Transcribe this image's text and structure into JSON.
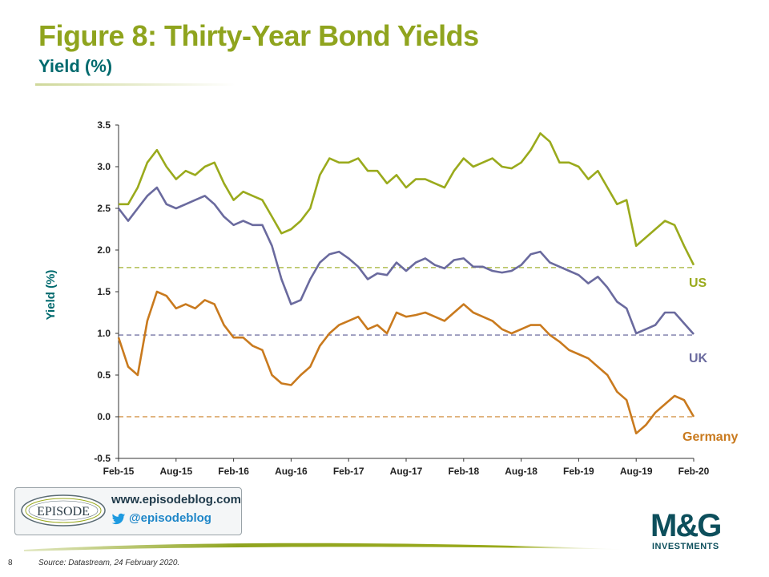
{
  "slide": {
    "title": "Figure 8: Thirty-Year Bond Yields",
    "subtitle": "Yield (%)",
    "page_number": "8",
    "source": "Source: Datastream, 24 February 2020."
  },
  "branding": {
    "episode_logo_text": "EPISODE",
    "website": "www.episodeblog.com",
    "twitter": "@episodeblog",
    "mg_logo": "M&G",
    "mg_sub": "INVESTMENTS"
  },
  "colors": {
    "title": "#8fa41e",
    "subtitle": "#006a6e",
    "us": "#9aaa1c",
    "uk": "#6a6a9e",
    "germany": "#c97a1e"
  },
  "chart_data": {
    "type": "line",
    "ylabel": "Yield (%)",
    "xlabel": "",
    "ylim": [
      -0.5,
      3.5
    ],
    "yticks": [
      -0.5,
      0.0,
      0.5,
      1.0,
      1.5,
      2.0,
      2.5,
      3.0,
      3.5
    ],
    "xlim": [
      "2015-02",
      "2020-02"
    ],
    "xticks": [
      "Feb-15",
      "Aug-15",
      "Feb-16",
      "Aug-16",
      "Feb-17",
      "Aug-17",
      "Feb-18",
      "Aug-18",
      "Feb-19",
      "Aug-19",
      "Feb-20"
    ],
    "grid": false,
    "series": [
      {
        "name": "US",
        "color": "#9aaa1c",
        "reference_level": 1.79,
        "points": [
          [
            "2015-02",
            2.55
          ],
          [
            "2015-03",
            2.55
          ],
          [
            "2015-04",
            2.75
          ],
          [
            "2015-05",
            3.05
          ],
          [
            "2015-06",
            3.2
          ],
          [
            "2015-07",
            3.0
          ],
          [
            "2015-08",
            2.85
          ],
          [
            "2015-09",
            2.95
          ],
          [
            "2015-10",
            2.9
          ],
          [
            "2015-11",
            3.0
          ],
          [
            "2015-12",
            3.05
          ],
          [
            "2016-01",
            2.8
          ],
          [
            "2016-02",
            2.6
          ],
          [
            "2016-03",
            2.7
          ],
          [
            "2016-04",
            2.65
          ],
          [
            "2016-05",
            2.6
          ],
          [
            "2016-06",
            2.4
          ],
          [
            "2016-07",
            2.2
          ],
          [
            "2016-08",
            2.25
          ],
          [
            "2016-09",
            2.35
          ],
          [
            "2016-10",
            2.5
          ],
          [
            "2016-11",
            2.9
          ],
          [
            "2016-12",
            3.1
          ],
          [
            "2017-01",
            3.05
          ],
          [
            "2017-02",
            3.05
          ],
          [
            "2017-03",
            3.1
          ],
          [
            "2017-04",
            2.95
          ],
          [
            "2017-05",
            2.95
          ],
          [
            "2017-06",
            2.8
          ],
          [
            "2017-07",
            2.9
          ],
          [
            "2017-08",
            2.75
          ],
          [
            "2017-09",
            2.85
          ],
          [
            "2017-10",
            2.85
          ],
          [
            "2017-11",
            2.8
          ],
          [
            "2017-12",
            2.75
          ],
          [
            "2018-01",
            2.95
          ],
          [
            "2018-02",
            3.1
          ],
          [
            "2018-03",
            3.0
          ],
          [
            "2018-04",
            3.05
          ],
          [
            "2018-05",
            3.1
          ],
          [
            "2018-06",
            3.0
          ],
          [
            "2018-07",
            2.98
          ],
          [
            "2018-08",
            3.05
          ],
          [
            "2018-09",
            3.2
          ],
          [
            "2018-10",
            3.4
          ],
          [
            "2018-11",
            3.3
          ],
          [
            "2018-12",
            3.05
          ],
          [
            "2019-01",
            3.05
          ],
          [
            "2019-02",
            3.0
          ],
          [
            "2019-03",
            2.85
          ],
          [
            "2019-04",
            2.95
          ],
          [
            "2019-05",
            2.75
          ],
          [
            "2019-06",
            2.55
          ],
          [
            "2019-07",
            2.6
          ],
          [
            "2019-08",
            2.05
          ],
          [
            "2019-09",
            2.15
          ],
          [
            "2019-10",
            2.25
          ],
          [
            "2019-11",
            2.35
          ],
          [
            "2019-12",
            2.3
          ],
          [
            "2020-01",
            2.05
          ],
          [
            "2020-02",
            1.82
          ]
        ]
      },
      {
        "name": "UK",
        "color": "#6a6a9e",
        "reference_level": 0.98,
        "points": [
          [
            "2015-02",
            2.5
          ],
          [
            "2015-03",
            2.35
          ],
          [
            "2015-04",
            2.5
          ],
          [
            "2015-05",
            2.65
          ],
          [
            "2015-06",
            2.75
          ],
          [
            "2015-07",
            2.55
          ],
          [
            "2015-08",
            2.5
          ],
          [
            "2015-09",
            2.55
          ],
          [
            "2015-10",
            2.6
          ],
          [
            "2015-11",
            2.65
          ],
          [
            "2015-12",
            2.55
          ],
          [
            "2016-01",
            2.4
          ],
          [
            "2016-02",
            2.3
          ],
          [
            "2016-03",
            2.35
          ],
          [
            "2016-04",
            2.3
          ],
          [
            "2016-05",
            2.3
          ],
          [
            "2016-06",
            2.05
          ],
          [
            "2016-07",
            1.65
          ],
          [
            "2016-08",
            1.35
          ],
          [
            "2016-09",
            1.4
          ],
          [
            "2016-10",
            1.65
          ],
          [
            "2016-11",
            1.85
          ],
          [
            "2016-12",
            1.95
          ],
          [
            "2017-01",
            1.98
          ],
          [
            "2017-02",
            1.9
          ],
          [
            "2017-03",
            1.8
          ],
          [
            "2017-04",
            1.65
          ],
          [
            "2017-05",
            1.72
          ],
          [
            "2017-06",
            1.7
          ],
          [
            "2017-07",
            1.85
          ],
          [
            "2017-08",
            1.75
          ],
          [
            "2017-09",
            1.85
          ],
          [
            "2017-10",
            1.9
          ],
          [
            "2017-11",
            1.82
          ],
          [
            "2017-12",
            1.78
          ],
          [
            "2018-01",
            1.88
          ],
          [
            "2018-02",
            1.9
          ],
          [
            "2018-03",
            1.8
          ],
          [
            "2018-04",
            1.8
          ],
          [
            "2018-05",
            1.75
          ],
          [
            "2018-06",
            1.73
          ],
          [
            "2018-07",
            1.75
          ],
          [
            "2018-08",
            1.82
          ],
          [
            "2018-09",
            1.95
          ],
          [
            "2018-10",
            1.98
          ],
          [
            "2018-11",
            1.85
          ],
          [
            "2018-12",
            1.8
          ],
          [
            "2019-01",
            1.75
          ],
          [
            "2019-02",
            1.7
          ],
          [
            "2019-03",
            1.6
          ],
          [
            "2019-04",
            1.68
          ],
          [
            "2019-05",
            1.55
          ],
          [
            "2019-06",
            1.38
          ],
          [
            "2019-07",
            1.3
          ],
          [
            "2019-08",
            1.0
          ],
          [
            "2019-09",
            1.05
          ],
          [
            "2019-10",
            1.1
          ],
          [
            "2019-11",
            1.25
          ],
          [
            "2019-12",
            1.25
          ],
          [
            "2020-01",
            1.12
          ],
          [
            "2020-02",
            0.99
          ]
        ]
      },
      {
        "name": "Germany",
        "color": "#c97a1e",
        "reference_level": 0.0,
        "points": [
          [
            "2015-02",
            0.95
          ],
          [
            "2015-03",
            0.6
          ],
          [
            "2015-04",
            0.5
          ],
          [
            "2015-05",
            1.15
          ],
          [
            "2015-06",
            1.5
          ],
          [
            "2015-07",
            1.45
          ],
          [
            "2015-08",
            1.3
          ],
          [
            "2015-09",
            1.35
          ],
          [
            "2015-10",
            1.3
          ],
          [
            "2015-11",
            1.4
          ],
          [
            "2015-12",
            1.35
          ],
          [
            "2016-01",
            1.1
          ],
          [
            "2016-02",
            0.95
          ],
          [
            "2016-03",
            0.95
          ],
          [
            "2016-04",
            0.85
          ],
          [
            "2016-05",
            0.8
          ],
          [
            "2016-06",
            0.5
          ],
          [
            "2016-07",
            0.4
          ],
          [
            "2016-08",
            0.38
          ],
          [
            "2016-09",
            0.5
          ],
          [
            "2016-10",
            0.6
          ],
          [
            "2016-11",
            0.85
          ],
          [
            "2016-12",
            1.0
          ],
          [
            "2017-01",
            1.1
          ],
          [
            "2017-02",
            1.15
          ],
          [
            "2017-03",
            1.2
          ],
          [
            "2017-04",
            1.05
          ],
          [
            "2017-05",
            1.1
          ],
          [
            "2017-06",
            1.0
          ],
          [
            "2017-07",
            1.25
          ],
          [
            "2017-08",
            1.2
          ],
          [
            "2017-09",
            1.22
          ],
          [
            "2017-10",
            1.25
          ],
          [
            "2017-11",
            1.2
          ],
          [
            "2017-12",
            1.15
          ],
          [
            "2018-01",
            1.25
          ],
          [
            "2018-02",
            1.35
          ],
          [
            "2018-03",
            1.25
          ],
          [
            "2018-04",
            1.2
          ],
          [
            "2018-05",
            1.15
          ],
          [
            "2018-06",
            1.05
          ],
          [
            "2018-07",
            1.0
          ],
          [
            "2018-08",
            1.05
          ],
          [
            "2018-09",
            1.1
          ],
          [
            "2018-10",
            1.1
          ],
          [
            "2018-11",
            0.98
          ],
          [
            "2018-12",
            0.9
          ],
          [
            "2019-01",
            0.8
          ],
          [
            "2019-02",
            0.75
          ],
          [
            "2019-03",
            0.7
          ],
          [
            "2019-04",
            0.6
          ],
          [
            "2019-05",
            0.5
          ],
          [
            "2019-06",
            0.3
          ],
          [
            "2019-07",
            0.2
          ],
          [
            "2019-08",
            -0.2
          ],
          [
            "2019-09",
            -0.1
          ],
          [
            "2019-10",
            0.05
          ],
          [
            "2019-11",
            0.15
          ],
          [
            "2019-12",
            0.25
          ],
          [
            "2020-01",
            0.2
          ],
          [
            "2020-02",
            0.0
          ]
        ]
      }
    ]
  }
}
